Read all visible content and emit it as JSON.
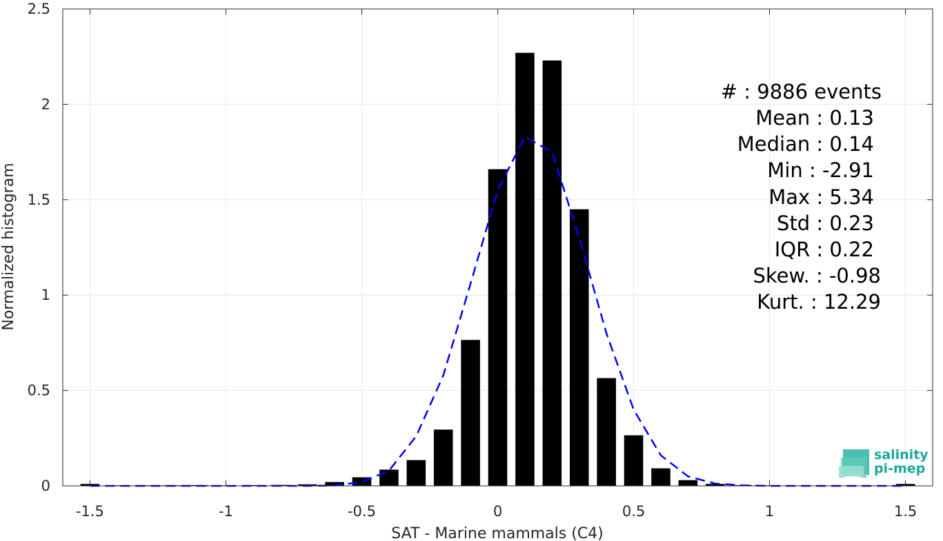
{
  "chart_data": {
    "type": "bar",
    "xlabel": "SAT - Marine mammals (C4)",
    "ylabel": "Normalized histogram",
    "xlim": [
      -1.6,
      1.6
    ],
    "ylim": [
      0,
      2.5
    ],
    "x_ticks": [
      -1.5,
      -1,
      -0.5,
      0,
      0.5,
      1,
      1.5
    ],
    "x_tick_labels": [
      "-1.5",
      "-1",
      "-0.5",
      "0",
      "0.5",
      "1",
      "1.5"
    ],
    "y_ticks": [
      0,
      0.5,
      1,
      1.5,
      2,
      2.5
    ],
    "y_tick_labels": [
      "0",
      "0.5",
      "1",
      "1.5",
      "2",
      "2.5"
    ],
    "grid": true,
    "bar_width": 0.07,
    "bars": {
      "x": [
        -1.5,
        -1.4,
        -1.3,
        -1.2,
        -1.1,
        -1.0,
        -0.9,
        -0.8,
        -0.7,
        -0.6,
        -0.5,
        -0.4,
        -0.3,
        -0.2,
        -0.1,
        0.0,
        0.1,
        0.2,
        0.3,
        0.4,
        0.5,
        0.6,
        0.7,
        0.8,
        0.9,
        1.0,
        1.1,
        1.2,
        1.3,
        1.4,
        1.5
      ],
      "values": [
        0.01,
        0.003,
        0.003,
        0.003,
        0.004,
        0.003,
        0.004,
        0.005,
        0.008,
        0.02,
        0.045,
        0.085,
        0.135,
        0.295,
        0.765,
        1.66,
        2.27,
        2.23,
        1.45,
        0.565,
        0.265,
        0.092,
        0.03,
        0.01,
        0.004,
        0.003,
        0.002,
        0.002,
        0.002,
        0.002,
        0.01
      ]
    },
    "fit_curve": {
      "style": "dashed",
      "color": "#0000ff",
      "x": [
        -1.5,
        -1.4,
        -1.3,
        -1.2,
        -1.1,
        -1.0,
        -0.9,
        -0.8,
        -0.7,
        -0.6,
        -0.5,
        -0.4,
        -0.3,
        -0.2,
        -0.1,
        0.0,
        0.1,
        0.2,
        0.3,
        0.4,
        0.5,
        0.6,
        0.7,
        0.8,
        0.9,
        1.0,
        1.1,
        1.2,
        1.3,
        1.4,
        1.5
      ],
      "values": [
        0.0,
        0.0,
        0.0,
        0.0,
        0.0,
        0.0,
        0.0,
        0.0,
        0.0,
        0.002,
        0.02,
        0.08,
        0.26,
        0.58,
        1.06,
        1.55,
        1.83,
        1.75,
        1.3,
        0.8,
        0.4,
        0.16,
        0.05,
        0.012,
        0.003,
        0.0,
        0.0,
        0.0,
        0.0,
        0.0,
        0.0
      ]
    },
    "bar_color": "#000000"
  },
  "stats": {
    "events": "#  : 9886 events",
    "mean": "Mean : 0.13",
    "median": "Median : 0.14",
    "min": "Min : -2.91",
    "max": "Max : 5.34",
    "std": "Std : 0.23",
    "iqr": "IQR : 0.22",
    "skew": "Skew. : -0.98",
    "kurt": "Kurt. : 12.29"
  },
  "logo": {
    "line1": "salinity",
    "line2": "pi-mep",
    "color": "#1aa89a"
  }
}
